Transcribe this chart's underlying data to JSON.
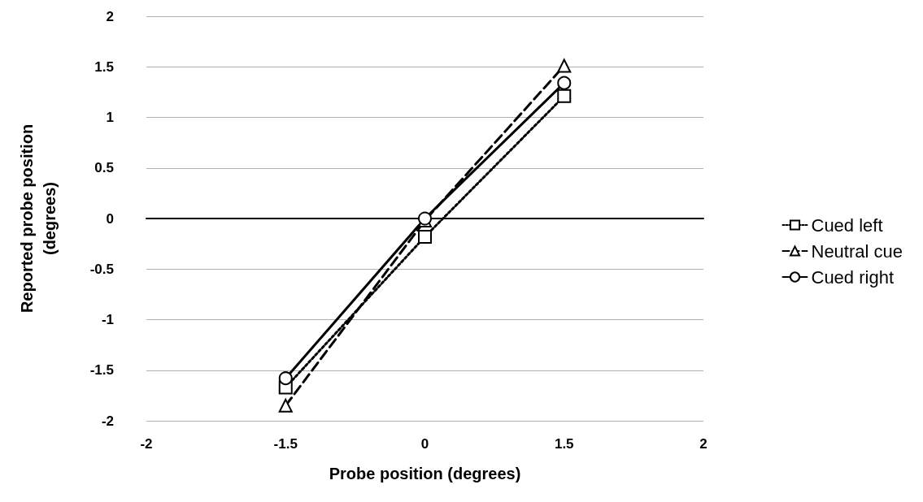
{
  "chart_data": {
    "type": "line",
    "xlabel": "Probe position (degrees)",
    "ylabel": "Reported probe position\n(degrees)",
    "categories": [
      "-2",
      "-1.5",
      "0",
      "1.5",
      "2"
    ],
    "series": [
      {
        "name": "Cued left",
        "color": "#000000",
        "marker": "square",
        "line_style": "dotted",
        "values": [
          null,
          -1.67,
          -0.18,
          1.21,
          null
        ]
      },
      {
        "name": "Neutral cue",
        "color": "#000000",
        "marker": "triangle",
        "line_style": "dashed",
        "values": [
          null,
          -1.85,
          -0.02,
          1.51,
          null
        ]
      },
      {
        "name": "Cued right",
        "color": "#000000",
        "marker": "circle",
        "line_style": "solid",
        "values": [
          null,
          -1.58,
          0,
          1.34,
          null
        ]
      }
    ],
    "ylim": [
      -2,
      2
    ],
    "yticks": [
      -2,
      -1.5,
      -1,
      -0.5,
      0,
      0.5,
      1,
      1.5,
      2
    ],
    "grid": "y",
    "legend": "right",
    "ref_lines": [
      {
        "axis": "y",
        "value": 0,
        "color": "#000000"
      }
    ]
  }
}
